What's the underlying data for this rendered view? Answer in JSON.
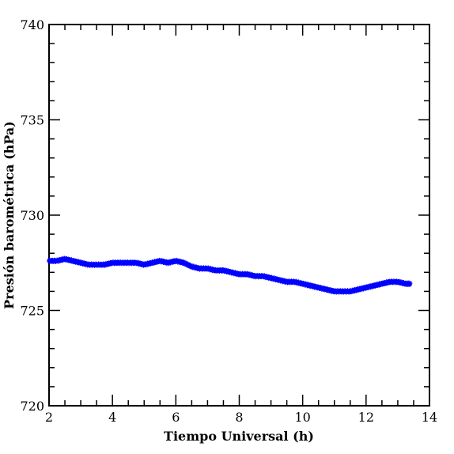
{
  "chart_data": {
    "type": "scatter",
    "xlabel": "Tiempo Universal (h)",
    "ylabel": "Presión barométrica (hPa)",
    "xlim": [
      2,
      14
    ],
    "ylim": [
      720,
      740
    ],
    "x_ticks": [
      {
        "value": 2,
        "label": "2"
      },
      {
        "value": 4,
        "label": "4"
      },
      {
        "value": 6,
        "label": "6"
      },
      {
        "value": 8,
        "label": "8"
      },
      {
        "value": 10,
        "label": "10"
      },
      {
        "value": 12,
        "label": "12"
      },
      {
        "value": 14,
        "label": "14"
      }
    ],
    "y_ticks": [
      {
        "value": 720,
        "label": "720"
      },
      {
        "value": 725,
        "label": "725"
      },
      {
        "value": 730,
        "label": "730"
      },
      {
        "value": 735,
        "label": "735"
      },
      {
        "value": 740,
        "label": "740"
      }
    ],
    "grid": false,
    "marker": "star",
    "series": [
      {
        "color": "#0000ff",
        "x": [
          2.0,
          2.25,
          2.5,
          2.75,
          3.0,
          3.25,
          3.5,
          3.75,
          4.0,
          4.25,
          4.5,
          4.75,
          5.0,
          5.25,
          5.5,
          5.75,
          6.0,
          6.25,
          6.5,
          6.75,
          7.0,
          7.25,
          7.5,
          7.75,
          8.0,
          8.25,
          8.5,
          8.75,
          9.0,
          9.25,
          9.5,
          9.75,
          10.0,
          10.25,
          10.5,
          10.75,
          11.0,
          11.25,
          11.5,
          11.75,
          12.0,
          12.25,
          12.5,
          12.75,
          13.0,
          13.25,
          13.4
        ],
        "y": [
          727.6,
          727.6,
          727.7,
          727.6,
          727.5,
          727.4,
          727.4,
          727.4,
          727.5,
          727.5,
          727.5,
          727.5,
          727.4,
          727.5,
          727.6,
          727.5,
          727.6,
          727.5,
          727.3,
          727.2,
          727.2,
          727.1,
          727.1,
          727.0,
          726.9,
          726.9,
          726.8,
          726.8,
          726.7,
          726.6,
          726.5,
          726.5,
          726.4,
          726.3,
          726.2,
          726.1,
          726.0,
          726.0,
          726.0,
          726.1,
          726.2,
          726.3,
          726.4,
          726.5,
          726.5,
          726.4,
          726.4
        ]
      }
    ]
  }
}
